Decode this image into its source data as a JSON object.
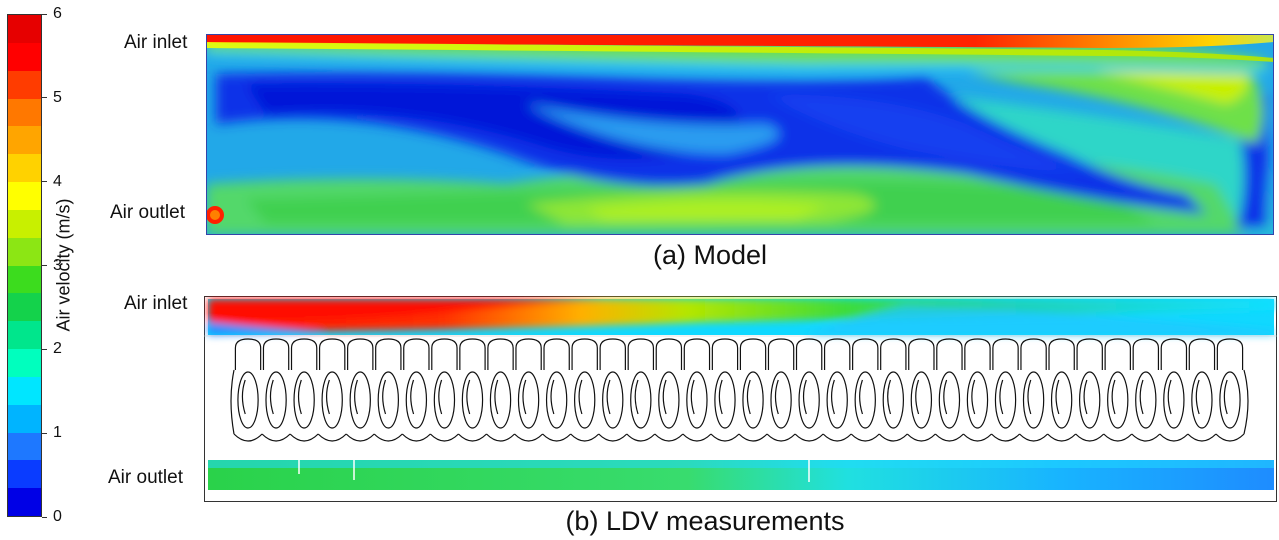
{
  "colorbar": {
    "title": "Air velocity (m/s)",
    "min": 0,
    "max": 6,
    "tick_labels": [
      "0",
      "1",
      "2",
      "3",
      "4",
      "5",
      "6"
    ],
    "colors": [
      "#0000e6",
      "#0a3cff",
      "#1e78ff",
      "#00b4ff",
      "#00e6ff",
      "#00ffbe",
      "#00e68c",
      "#14d24b",
      "#3cdc1e",
      "#8ce614",
      "#c8f000",
      "#ffff00",
      "#ffd200",
      "#ffa500",
      "#ff7800",
      "#ff3c00",
      "#ff0000",
      "#e60000"
    ]
  },
  "model_panel": {
    "inlet_label": "Air inlet",
    "outlet_label": "Air outlet",
    "caption": "(a) Model"
  },
  "ldv_panel": {
    "inlet_label": "Air inlet",
    "outlet_label": "Air outlet",
    "caption": "(b) LDV measurements",
    "product_columns": 36
  }
}
